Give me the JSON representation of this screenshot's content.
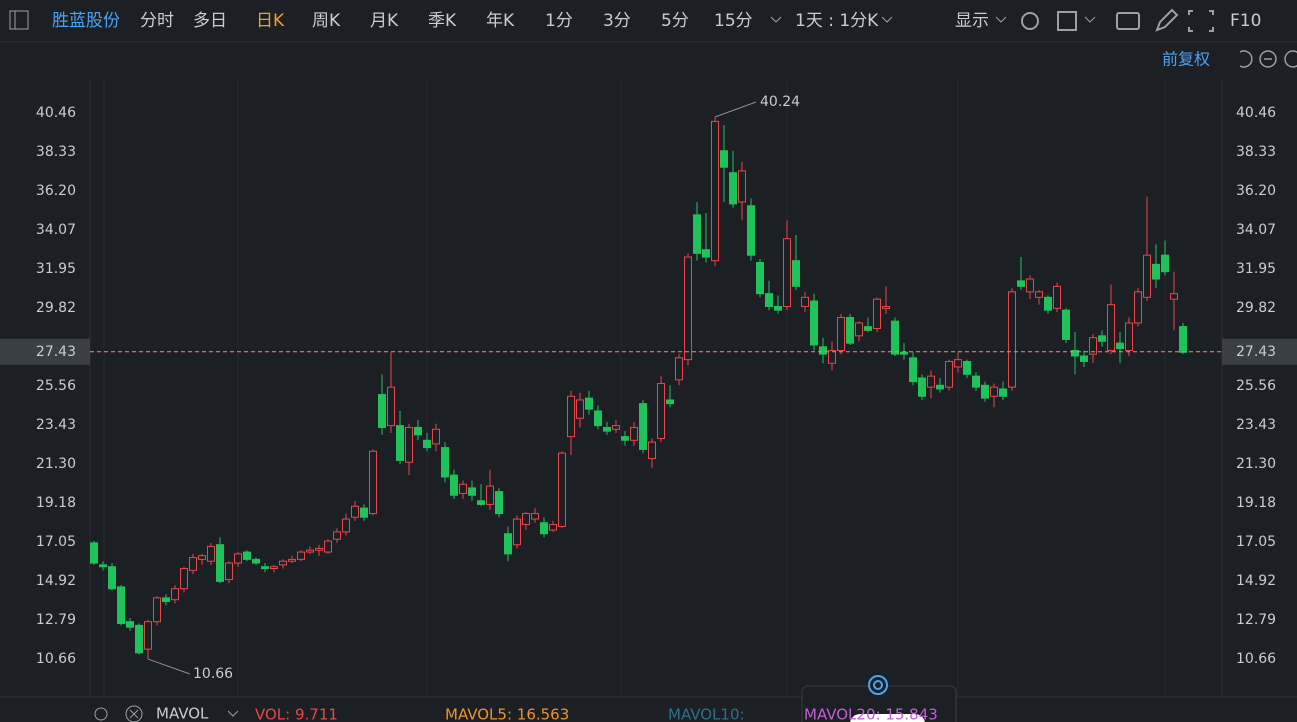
{
  "header": {
    "stock": "胜蓝股份",
    "tabs": [
      "分时",
      "多日",
      "日K",
      "周K",
      "月K",
      "季K",
      "年K",
      "1分",
      "3分",
      "5分",
      "15分"
    ],
    "active_tab": "日K",
    "period": "1天 : 1分K",
    "display": "显示",
    "f10": "F10",
    "adjust": "前复权"
  },
  "chart_data": {
    "type": "candlestick",
    "up_color": "#e8474c",
    "down_color": "#1fc35b",
    "ylim": [
      8.59,
      42.26
    ],
    "yticks": [
      40.46,
      38.33,
      {
        "value": 36.2,
        "label": "36.20"
      },
      34.07,
      31.95,
      29.82,
      25.56,
      23.43,
      {
        "value": 21.3,
        "label": "21.30"
      },
      19.18,
      17.05,
      14.92,
      12.79,
      10.66
    ],
    "open": [
      17.0,
      15.8,
      15.7,
      14.6,
      12.7,
      12.5,
      11.2,
      12.7,
      14.0,
      13.9,
      14.5,
      15.5,
      16.1,
      16.0,
      16.9,
      15.0,
      15.9,
      16.5,
      16.1,
      15.7,
      15.6,
      15.8,
      16.0,
      16.1,
      16.5,
      16.6,
      16.5,
      17.2,
      17.6,
      18.4,
      18.9,
      18.6,
      25.1,
      23.4,
      23.4,
      21.4,
      23.3,
      22.6,
      22.4,
      22.2,
      20.7,
      19.7,
      20.0,
      19.3,
      19.1,
      19.8,
      17.5,
      16.9,
      18.0,
      18.3,
      18.1,
      17.7,
      17.9,
      22.8,
      23.8,
      24.9,
      24.2,
      23.3,
      23.2,
      22.8,
      22.6,
      24.6,
      21.6,
      22.7,
      24.8,
      25.9,
      27.0,
      34.9,
      33.0,
      32.4,
      38.4,
      37.2,
      35.6,
      35.4,
      32.3,
      30.6,
      29.9,
      29.9,
      32.4,
      29.9,
      30.2,
      27.7,
      26.8,
      27.5,
      29.3,
      28.3,
      28.8,
      28.7,
      29.8,
      29.1,
      27.4,
      27.1,
      26.0,
      25.5,
      25.6,
      25.5,
      26.6,
      26.9,
      26.1,
      25.6,
      25.0,
      25.4,
      25.5,
      31.3,
      30.7,
      30.4,
      30.4,
      29.8,
      29.7,
      27.5,
      27.2,
      27.3,
      28.3,
      27.5,
      27.9,
      27.5,
      29.0,
      30.4,
      32.2,
      32.7,
      30.3,
      28.8
    ],
    "high": [
      17.1,
      16.0,
      15.9,
      14.7,
      12.9,
      12.6,
      12.8,
      14.1,
      14.2,
      14.7,
      15.7,
      16.4,
      16.4,
      17.0,
      17.3,
      16.0,
      16.5,
      16.6,
      16.2,
      15.9,
      15.8,
      16.1,
      16.3,
      16.6,
      16.8,
      16.9,
      17.2,
      17.8,
      18.6,
      19.3,
      19.1,
      22.1,
      26.2,
      27.4,
      24.2,
      23.5,
      23.7,
      23.0,
      23.5,
      22.5,
      21.0,
      20.4,
      20.4,
      20.2,
      21.0,
      20.0,
      17.9,
      18.5,
      18.7,
      18.9,
      18.4,
      18.2,
      22.0,
      25.3,
      25.2,
      25.3,
      24.5,
      23.6,
      23.7,
      23.1,
      23.6,
      24.8,
      22.7,
      26.1,
      25.6,
      27.3,
      32.8,
      35.6,
      35.0,
      40.24,
      39.8,
      38.4,
      37.8,
      35.8,
      32.5,
      31.3,
      30.5,
      34.6,
      33.8,
      30.7,
      30.6,
      28.2,
      28.0,
      29.5,
      29.5,
      29.1,
      29.3,
      30.4,
      31.0,
      29.3,
      27.9,
      27.4,
      26.2,
      26.4,
      26.0,
      27.0,
      27.4,
      27.0,
      26.3,
      25.8,
      25.7,
      25.8,
      30.9,
      32.6,
      31.6,
      30.8,
      30.5,
      31.2,
      29.8,
      28.5,
      27.5,
      28.4,
      28.6,
      31.1,
      28.5,
      29.3,
      30.9,
      35.9,
      33.3,
      33.5,
      31.8,
      29.0
    ],
    "low": [
      15.8,
      15.5,
      14.4,
      12.5,
      12.2,
      10.9,
      10.66,
      12.5,
      13.6,
      13.7,
      14.3,
      15.3,
      15.8,
      15.8,
      14.8,
      14.8,
      15.7,
      16.0,
      15.8,
      15.4,
      15.4,
      15.6,
      15.9,
      16.0,
      16.4,
      16.3,
      16.4,
      17.0,
      17.4,
      18.2,
      18.2,
      18.5,
      22.9,
      23.0,
      21.3,
      20.7,
      22.6,
      22.0,
      22.0,
      20.3,
      19.4,
      19.4,
      19.3,
      19.0,
      18.8,
      18.4,
      16.0,
      16.7,
      17.7,
      18.1,
      17.3,
      17.6,
      17.8,
      21.8,
      23.3,
      24.0,
      23.2,
      22.9,
      23.0,
      22.3,
      22.3,
      21.9,
      21.1,
      22.5,
      24.4,
      25.6,
      26.7,
      32.4,
      32.3,
      32.1,
      35.6,
      35.3,
      34.6,
      32.4,
      30.4,
      29.7,
      29.5,
      29.7,
      30.8,
      29.6,
      27.5,
      26.8,
      26.4,
      27.3,
      27.8,
      28.0,
      28.5,
      28.5,
      29.5,
      27.2,
      27.0,
      25.6,
      24.8,
      24.9,
      25.2,
      25.3,
      26.3,
      26.0,
      25.3,
      24.7,
      24.4,
      24.8,
      25.3,
      30.8,
      30.3,
      30.0,
      29.5,
      29.6,
      27.9,
      26.2,
      26.6,
      26.8,
      27.7,
      27.3,
      26.8,
      27.2,
      28.8,
      30.2,
      30.9,
      31.6,
      28.6,
      27.3
    ],
    "close": [
      15.9,
      15.7,
      14.5,
      12.6,
      12.4,
      11.0,
      12.7,
      14.0,
      13.8,
      14.5,
      15.6,
      16.2,
      16.3,
      16.8,
      14.9,
      15.9,
      16.4,
      16.1,
      15.9,
      15.6,
      15.7,
      16.0,
      16.1,
      16.5,
      16.6,
      16.7,
      17.1,
      17.6,
      18.3,
      19.0,
      18.4,
      22.0,
      23.3,
      25.5,
      21.5,
      23.3,
      22.9,
      22.2,
      23.2,
      20.6,
      19.6,
      20.2,
      19.6,
      19.1,
      20.1,
      18.6,
      16.4,
      18.3,
      18.6,
      18.6,
      17.5,
      18.0,
      21.9,
      25.0,
      24.8,
      24.3,
      23.4,
      23.1,
      23.4,
      22.6,
      23.3,
      22.1,
      22.5,
      25.7,
      24.6,
      27.1,
      32.6,
      32.8,
      32.6,
      40.0,
      37.5,
      35.5,
      37.3,
      32.7,
      30.6,
      29.9,
      29.7,
      33.6,
      31.0,
      30.4,
      27.8,
      27.3,
      27.5,
      29.3,
      27.9,
      29.0,
      28.6,
      30.3,
      29.9,
      27.3,
      27.3,
      25.8,
      25.0,
      26.1,
      25.4,
      26.9,
      27.0,
      26.2,
      25.5,
      24.9,
      25.5,
      25.0,
      30.7,
      31.0,
      31.4,
      30.7,
      29.7,
      31.0,
      28.1,
      27.2,
      26.9,
      28.2,
      28.0,
      30.0,
      27.6,
      29.0,
      30.7,
      32.7,
      31.4,
      31.8,
      30.6,
      27.4
    ],
    "annotations": {
      "high": 40.24,
      "low": 10.66,
      "last_price": 27.43
    },
    "indicators": {
      "name": "MAVOL",
      "items": [
        {
          "label": "VOL: 9.711",
          "color": "#e8474c"
        },
        {
          "label": "MAVOL5: 16.563",
          "color": "#f0932b"
        },
        {
          "label": "MAVOL10:",
          "color": "#2f6f8f"
        },
        {
          "label": "MAVOL20: 15.843",
          "color": "#c05fd6"
        }
      ]
    }
  }
}
